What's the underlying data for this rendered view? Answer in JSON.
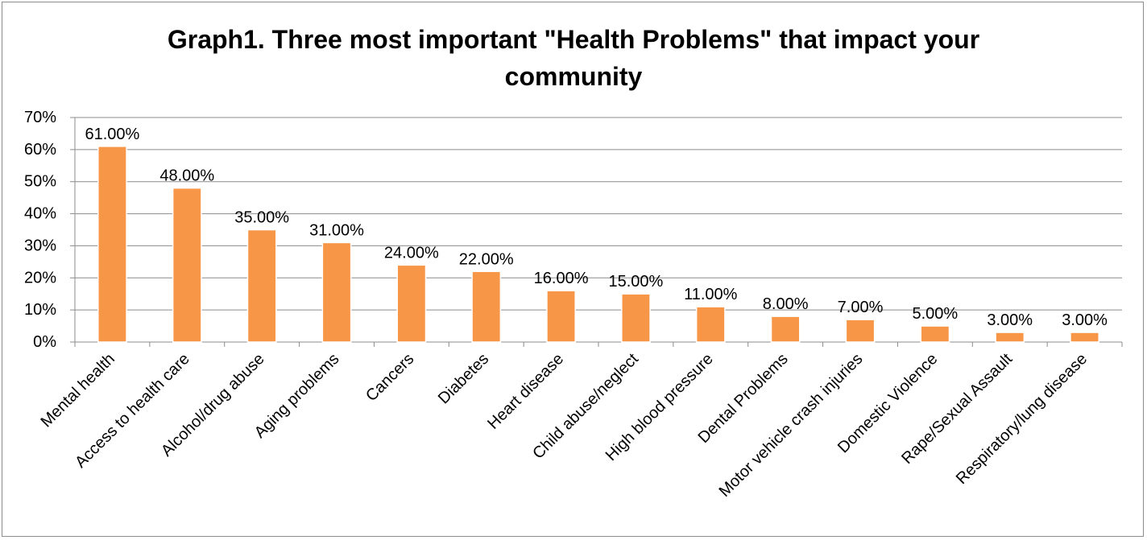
{
  "chart_data": {
    "type": "bar",
    "title": "Graph1. Three most important \"Health Problems\" that impact your community",
    "xlabel": "",
    "ylabel": "",
    "categories": [
      "Mental health",
      "Access to health care",
      "Alcohol/drug abuse",
      "Aging problems",
      "Cancers",
      "Diabetes",
      "Heart disease",
      "Child abuse/neglect",
      "High blood pressure",
      "Dental Problems",
      "Motor vehicle crash injuries",
      "Domestic Violence",
      "Rape/Sexual Assault",
      "Respiratory/lung disease"
    ],
    "values": [
      61,
      48,
      35,
      31,
      24,
      22,
      16,
      15,
      11,
      8,
      7,
      5,
      3,
      3
    ],
    "data_labels": [
      "61.00%",
      "48.00%",
      "35.00%",
      "31.00%",
      "24.00%",
      "22.00%",
      "16.00%",
      "15.00%",
      "11.00%",
      "8.00%",
      "7.00%",
      "5.00%",
      "3.00%",
      "3.00%"
    ],
    "ylim": [
      0,
      70
    ],
    "yticks": [
      0,
      10,
      20,
      30,
      40,
      50,
      60,
      70
    ],
    "ytick_labels": [
      "0%",
      "10%",
      "20%",
      "30%",
      "40%",
      "50%",
      "60%",
      "70%"
    ],
    "grid": true,
    "legend": "none",
    "colors": {
      "bar": "#f79646",
      "bar_edge": "#ffffff",
      "grid": "#8c8c8c",
      "axis": "#8c8c8c"
    }
  }
}
